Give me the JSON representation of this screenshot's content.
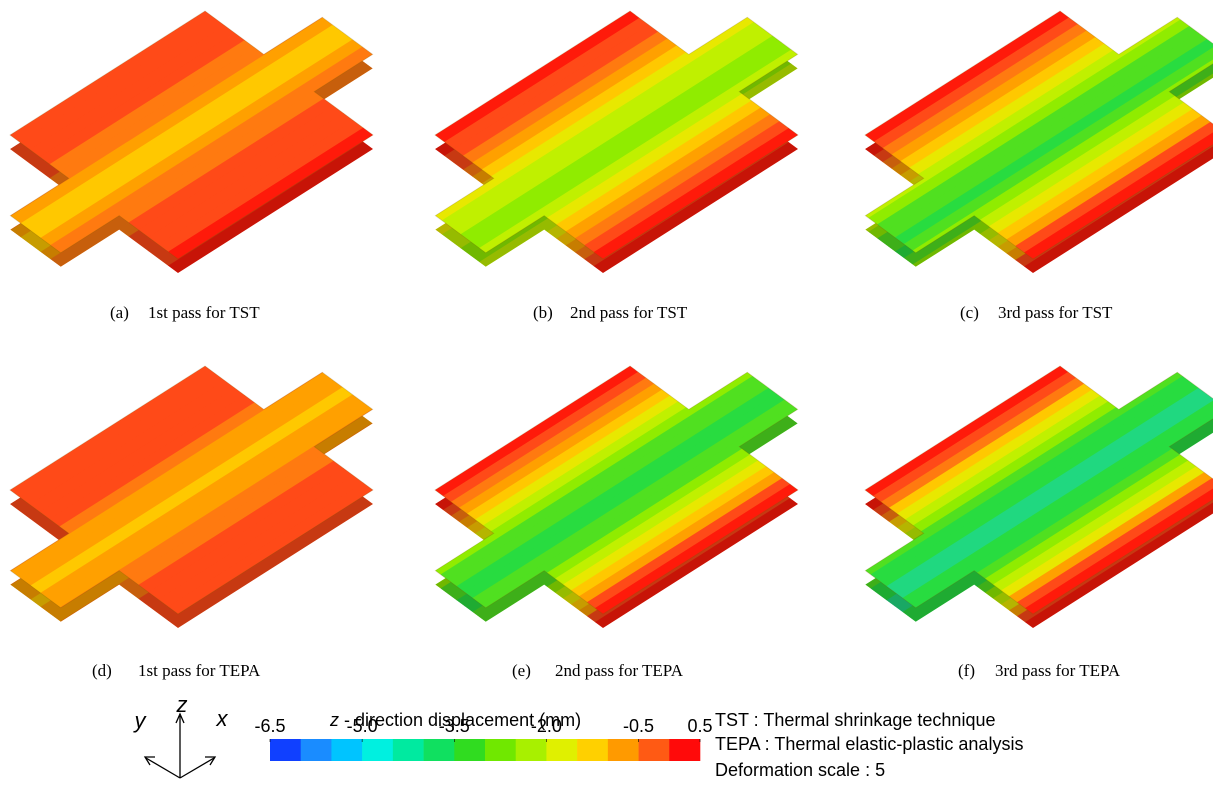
{
  "panels": [
    {
      "label": "(a)",
      "caption": "1st pass for TST"
    },
    {
      "label": "(b)",
      "caption": "2nd pass for TST"
    },
    {
      "label": "(c)",
      "caption": "3rd pass for TST"
    },
    {
      "label": "(d)",
      "caption": "1st pass for TEPA"
    },
    {
      "label": "(e)",
      "caption": "2nd pass for TEPA"
    },
    {
      "label": "(f)",
      "caption": "3rd pass for TEPA"
    }
  ],
  "colorbar": {
    "title_var": "z",
    "title": "- direction displacement (mm)",
    "clim": [
      -6.5,
      0.5
    ],
    "ticks": [
      -6.5,
      {
        "value": -5.0,
        "label": "-5.0"
      },
      -3.5,
      {
        "value": -2.0,
        "label": "-2.0"
      },
      -0.5,
      0.5
    ],
    "colors": [
      "#1040ff",
      "#1a8cff",
      "#00c4ff",
      "#00f0e0",
      "#00eaa0",
      "#10e060",
      "#30dc20",
      "#70e800",
      "#a8f000",
      "#e0f000",
      "#ffd000",
      "#ff9a00",
      "#ff5a14",
      "#ff0a0a"
    ]
  },
  "axes_triad": {
    "x": "x",
    "y": "y",
    "z": "z"
  },
  "notes": [
    "TST : Thermal shrinkage technique",
    "TEPA : Thermal elastic-plastic analysis",
    "Deformation scale : 5"
  ]
}
